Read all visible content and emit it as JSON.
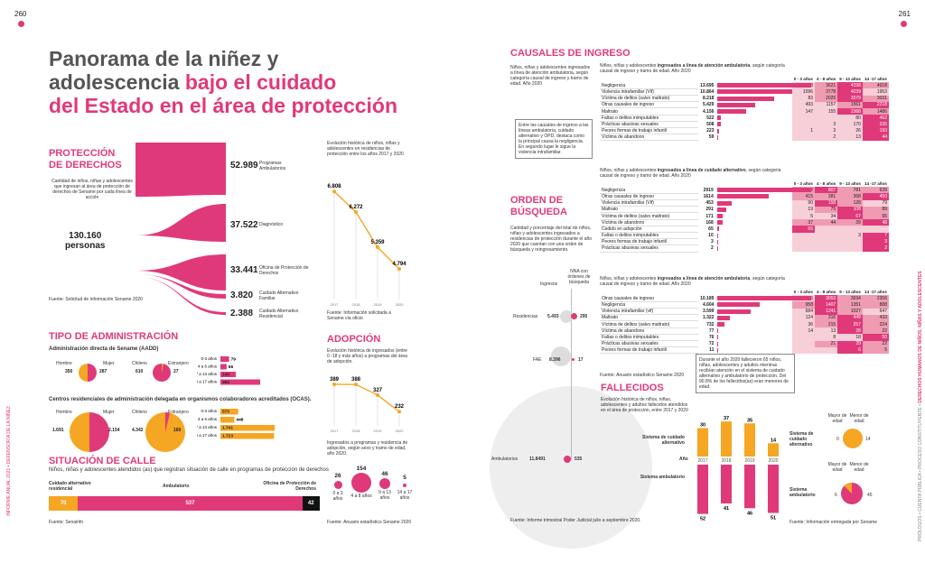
{
  "left": {
    "page_number": "260",
    "side_text": "INFORME ANUAL 2021 • DEFENSORÍA DE LA NIÑEZ",
    "title_line1": "Panorama de la niñez y",
    "title_line2a": "adolescencia ",
    "title_line2b": "bajo el cuidado",
    "title_line3": "del Estado en el área de protección",
    "proteccion": {
      "heading1": "PROTECCIÓN",
      "heading2": "DE DERECHOS",
      "desc": "Cantidad de niños, niñas y adolescentes que ingresan al área de protección de derechos de Sename por cada línea de acción",
      "total": "130.160",
      "total_unit": "personas",
      "source": "Fuente: Solicitud de información Sename 2020",
      "items": [
        {
          "value": "52.989",
          "label": "Programas Ambulatorios"
        },
        {
          "value": "37.522",
          "label": "Diagnóstico"
        },
        {
          "value": "33.441",
          "label": "Oficina de Protección de Derechos"
        },
        {
          "value": "3.820",
          "label": "Cuidado Alternativo Familiar"
        },
        {
          "value": "2.388",
          "label": "Cuidado Alternativo Residencial"
        }
      ]
    },
    "evolucion": {
      "desc": "Evolución histórica de niños, niñas y adolescentes en residencias de protección entre los años 2017 y 2020",
      "source": "Fuente: Información solicitada a Sename vía oficio",
      "chart_data": {
        "type": "line",
        "x": [
          "2017",
          "2018",
          "2019",
          "2020"
        ],
        "values": [
          6808,
          6272,
          5359,
          4794
        ],
        "labels": [
          "6.808",
          "6.272",
          "5.359",
          "4.794"
        ]
      }
    },
    "tipo": {
      "heading": "TIPO DE ADMINISTRACIÓN",
      "sub1": "Administración directa de Sename (AADD)",
      "sub2": "Centros residenciales de administración delegada en organismos colaboradores acreditados (OCAS).",
      "aadd": {
        "hombre": "350",
        "mujer": "287",
        "chileno": "610",
        "extranjero": "27",
        "labels": {
          "hombre": "Hombre",
          "mujer": "Mujer",
          "chileno": "Chileno",
          "extranjero": "Extranjero"
        },
        "chart_data": {
          "type": "bar",
          "categories": [
            "0-3 años",
            "4 a 6 años",
            "7 a 13 años",
            "14 a 17 años"
          ],
          "values": [
            79,
            56,
            140,
            362
          ],
          "labels": [
            "79",
            "56",
            "140",
            "362"
          ]
        }
      },
      "ocas": {
        "hombre": "1.691",
        "mujer": "2.154",
        "chileno": "4.342",
        "extranjero": "160",
        "chart_data": {
          "type": "bar",
          "categories": [
            "0-3 años",
            "4 a 6 años",
            "7 a 13 años",
            "14 a 17 años"
          ],
          "values": [
            570,
            448,
            1741,
            1723
          ],
          "labels": [
            "570",
            "448",
            "1.741",
            "1.723"
          ]
        }
      }
    },
    "adopcion": {
      "heading": "ADOPCIÓN",
      "desc": "Evolución histórica de ingresados (entre 0 -18 y más años) a programas del área de adopción.",
      "chart_data": {
        "type": "line",
        "x": [
          "2017",
          "2018",
          "2019",
          "2020"
        ],
        "values": [
          389,
          388,
          327,
          232
        ],
        "labels": [
          "389",
          "388",
          "327",
          "232"
        ]
      },
      "desc2": "Ingresados a programas y residencia de adopción, según sexo y tramo de edad, año 2020.",
      "bubbles": [
        {
          "value": "26",
          "label": "0 a 3 años"
        },
        {
          "value": "154",
          "label": "4 a 8 años"
        },
        {
          "value": "46",
          "label": "9 a 13 años"
        },
        {
          "value": "5",
          "label": "14 a 17 años"
        }
      ],
      "source": "Fuente: Anuario estadístico Sename 2020"
    },
    "calle": {
      "heading": "SITUACIÓN DE CALLE",
      "desc": "Niños, niñas y adolescentes atendidos (as) que registran situación de calle en programas de protección de derechos",
      "col1": "Cuidado alternativo residencial",
      "col2": "Ambulatorio",
      "col3": "Oficina de Protección de Derechos",
      "chart_data": {
        "type": "bar",
        "categories": [
          "Cuidado alternativo residencial",
          "Ambulatorio",
          "Oficina de Protección de Derechos"
        ],
        "values": [
          70,
          537,
          42
        ],
        "labels": [
          "70",
          "537",
          "42"
        ]
      },
      "source": "Fuente: Senainfo"
    }
  },
  "right": {
    "page_number": "261",
    "side_text": "PRÓLOGOS • CUENTA PÚBLICA • PROCESO CONSTITUYENTE •",
    "side_text_pink": "DERECHOS HUMANOS DE NIÑOS, NIÑAS Y ADOLESCENTES",
    "causales": {
      "heading": "CAUSALES DE INGRESO",
      "desc": "Niños, niñas y adolescentes ingresados a línea de atención ambulatoria, según categoría causal de ingreso y tramo de edad. Año 2020",
      "callout": "Entre las causales de ingreso a las líneas ambulatoria, cuidado alternativo y OPD, destaca como la principal causa la negligencia. En segundo lugar le sigue la violencia intrafamiliar.",
      "age_headers": [
        "0 - 3 años",
        "4 - 8 años",
        "9 - 13 años",
        "14 -17 años"
      ],
      "t1": {
        "title_a": "Niños, niñas y adolescentes ",
        "title_b": "ingresados a línea de atención ambulatoria",
        "title_c": ", según categoría causal de ingreso y tramo de edad. Año 2020",
        "chart_data": {
          "type": "table",
          "rows": [
            {
              "label": "Negligencia",
              "total": "13.695",
              "value": 13695,
              "ages": [
                "1758",
                "3621",
                "4298",
                "4018"
              ]
            },
            {
              "label": "Violencia intrafamiliar (Vif)",
              "total": "10.864",
              "value": 10864,
              "ages": [
                "1096",
                "3778",
                "4039",
                "1953"
              ]
            },
            {
              "label": "Víctima de delitos (salvo maltrato)",
              "total": "8.218",
              "value": 8218,
              "ages": [
                "83",
                "2025",
                "3079",
                "3031"
              ]
            },
            {
              "label": "Otras causales de ingreso",
              "total": "5.429",
              "value": 5429,
              "ages": [
                "493",
                "1157",
                "1561",
                "2218"
              ]
            },
            {
              "label": "Maltrato",
              "total": "4.156",
              "value": 4156,
              "ages": [
                "147",
                "155",
                "2368",
                "1486"
              ]
            },
            {
              "label": "Faltas o delitos inimputables",
              "total": "522",
              "value": 522,
              "ages": [
                "",
                "",
                "80",
                "462"
              ]
            },
            {
              "label": "Prácticas abusivas sexuales",
              "total": "508",
              "value": 508,
              "ages": [
                "",
                "3",
                "170",
                "335"
              ]
            },
            {
              "label": "Peores formas de trabajo infantil",
              "total": "223",
              "value": 223,
              "ages": [
                "1",
                "3",
                "26",
                "193"
              ]
            },
            {
              "label": "Víctima de abandono",
              "total": "59",
              "value": 59,
              "ages": [
                "",
                "2",
                "13",
                "44"
              ]
            }
          ]
        }
      },
      "t2": {
        "title_a": "Niños, niñas y adolescentes ",
        "title_b": "ingresados a línea de cuidado alternativo",
        "title_c": ", según categoría causal de ingreso y tramo de edad. Año 2020",
        "chart_data": {
          "type": "table",
          "rows": [
            {
              "label": "Negligencia",
              "total": "2919",
              "value": 2919,
              "ages": [
                "642",
                "807",
                "781",
                "639"
              ]
            },
            {
              "label": "Otras causales de ingreso",
              "total": "1614",
              "value": 1614,
              "ages": [
                "415",
                "381",
                "368",
                "450"
              ]
            },
            {
              "label": "Violencia intrafamiliar (Vif)",
              "total": "453",
              "value": 453,
              "ages": [
                "90",
                "158",
                "128",
                "79"
              ]
            },
            {
              "label": "Maltrato",
              "total": "291",
              "value": 291,
              "ages": [
                "19",
                "75",
                "108",
                "89"
              ]
            },
            {
              "label": "Víctima de delitos (salvo maltrato)",
              "total": "171",
              "value": 171,
              "ages": [
                "5",
                "34",
                "67",
                "65"
              ]
            },
            {
              "label": "Víctima de abandono",
              "total": "168",
              "value": 168,
              "ages": [
                "37",
                "44",
                "39",
                "48"
              ]
            },
            {
              "label": "Cedido en adopción",
              "total": "65",
              "value": 65,
              "ages": [
                "65",
                "",
                "",
                ""
              ]
            },
            {
              "label": "Faltas o delitos inimputables",
              "total": "10",
              "value": 10,
              "ages": [
                "",
                "",
                "3",
                "7"
              ]
            },
            {
              "label": "Peores formas de trabajo infantil",
              "total": "3",
              "value": 3,
              "ages": [
                "",
                "",
                "",
                "3"
              ]
            },
            {
              "label": "Prácticas abusivas sexuales",
              "total": "2",
              "value": 2,
              "ages": [
                "",
                "",
                "",
                "2"
              ]
            }
          ]
        }
      },
      "t3": {
        "title_a": "Niños, niñas y adolescentes ",
        "title_b": "ingresados a línea de atención ambulatoria",
        "title_c": ", según categoría causal de ingreso y tramo de edad. Año 2020",
        "chart_data": {
          "type": "table",
          "rows": [
            {
              "label": "Otras causales de ingreso",
              "total": "10.189",
              "value": 10189,
              "ages": [
                "1746",
                "3053",
                "3034",
                "2356"
              ]
            },
            {
              "label": "Negligencia",
              "total": "4.604",
              "value": 4604,
              "ages": [
                "958",
                "1407",
                "1351",
                "888"
              ]
            },
            {
              "label": "Violencia intrafamiliar (vif)",
              "total": "3.599",
              "value": 3599,
              "ages": [
                "684",
                "1241",
                "1027",
                "647"
              ]
            },
            {
              "label": "Maltrato",
              "total": "1.322",
              "value": 1322,
              "ages": [
                "124",
                "316",
                "449",
                "433"
              ]
            },
            {
              "label": "Víctima de delitos (salvo maltrato)",
              "total": "732",
              "value": 732,
              "ages": [
                "36",
                "215",
                "257",
                "224"
              ]
            },
            {
              "label": "Víctima de abandono",
              "total": "77",
              "value": 77,
              "ages": [
                "14",
                "13",
                "28",
                "22"
              ]
            },
            {
              "label": "Faltas o delitos inimputables",
              "total": "76",
              "value": 76,
              "ages": [
                "",
                "8",
                "18",
                "50"
              ]
            },
            {
              "label": "Prácticas abusivas sexuales",
              "total": "72",
              "value": 72,
              "ages": [
                "",
                "21",
                "29",
                "22"
              ]
            },
            {
              "label": "Peores formas de trabajo infantil",
              "total": "11",
              "value": 11,
              "ages": [
                "",
                "",
                "6",
                "5"
              ]
            }
          ]
        }
      },
      "source": "Fuente: Anuario estadístico Sename 2020"
    },
    "orden": {
      "heading1": "ORDEN DE",
      "heading2": "BÚSQUEDA",
      "desc": "Cantidad y porcentaje del total de niños, niñas y adolescentes ingresados a residencias de protección durante el año 2020 que cuentan con una orden de búsqueda y reingresamiento.",
      "col_ingresos": "Ingresos",
      "col_nna": "NNA con órdenes de búsqueda",
      "rows": [
        {
          "label": "Residencias",
          "ingresos": "5.493",
          "nna": "295"
        },
        {
          "label": "FAE",
          "ingresos": "8.396",
          "nna": "17"
        },
        {
          "label": "Ambulatorios",
          "ingresos": "11.8491",
          "nna": "535"
        }
      ],
      "source": "Fuente: Informe trimestral Poder Judicial julio a septiembre 2020."
    },
    "fallecidos": {
      "heading": "FALLECIDOS",
      "desc": "Evolución histórica de niños, niñas, adolescentes y adultos fallecidos atendidos en el área de protección, entre 2017 y 2020",
      "callout": "Durante el año 2020 fallecieron 65 niños, niñas, adolescentes y adultos mientras recibían atención en el sistema de cuidado alternativo y ambulatorio de protección. Del 90.8% de los fallecidos(as) eran menores de edad.",
      "label_cuidado": "Sistema de cuidado alternativo",
      "label_amb": "Sistema ambulatorio",
      "label_year": "Año",
      "chart_data": {
        "type": "bar",
        "categories": [
          "2017",
          "2018",
          "2019",
          "2020"
        ],
        "series": [
          {
            "name": "Sistema de cuidado alternativo",
            "values": [
              30,
              37,
              35,
              14
            ]
          },
          {
            "name": "Sistema ambulatorio",
            "values": [
              52,
              41,
              46,
              51
            ]
          }
        ]
      },
      "mayor": "Mayor de edad",
      "menor": "Menor de edad",
      "pie_cuidado": {
        "label": "Sistema de cuidado alternativo",
        "mayor": "0",
        "menor": "14"
      },
      "pie_amb": {
        "label": "Sistema ambulatorio",
        "mayor": "6",
        "menor": "45"
      },
      "source": "Fuente: Información entregada por Sename"
    }
  },
  "colors": {
    "pink": "#e0397a",
    "orange": "#f5a623",
    "gray": "#555555"
  }
}
